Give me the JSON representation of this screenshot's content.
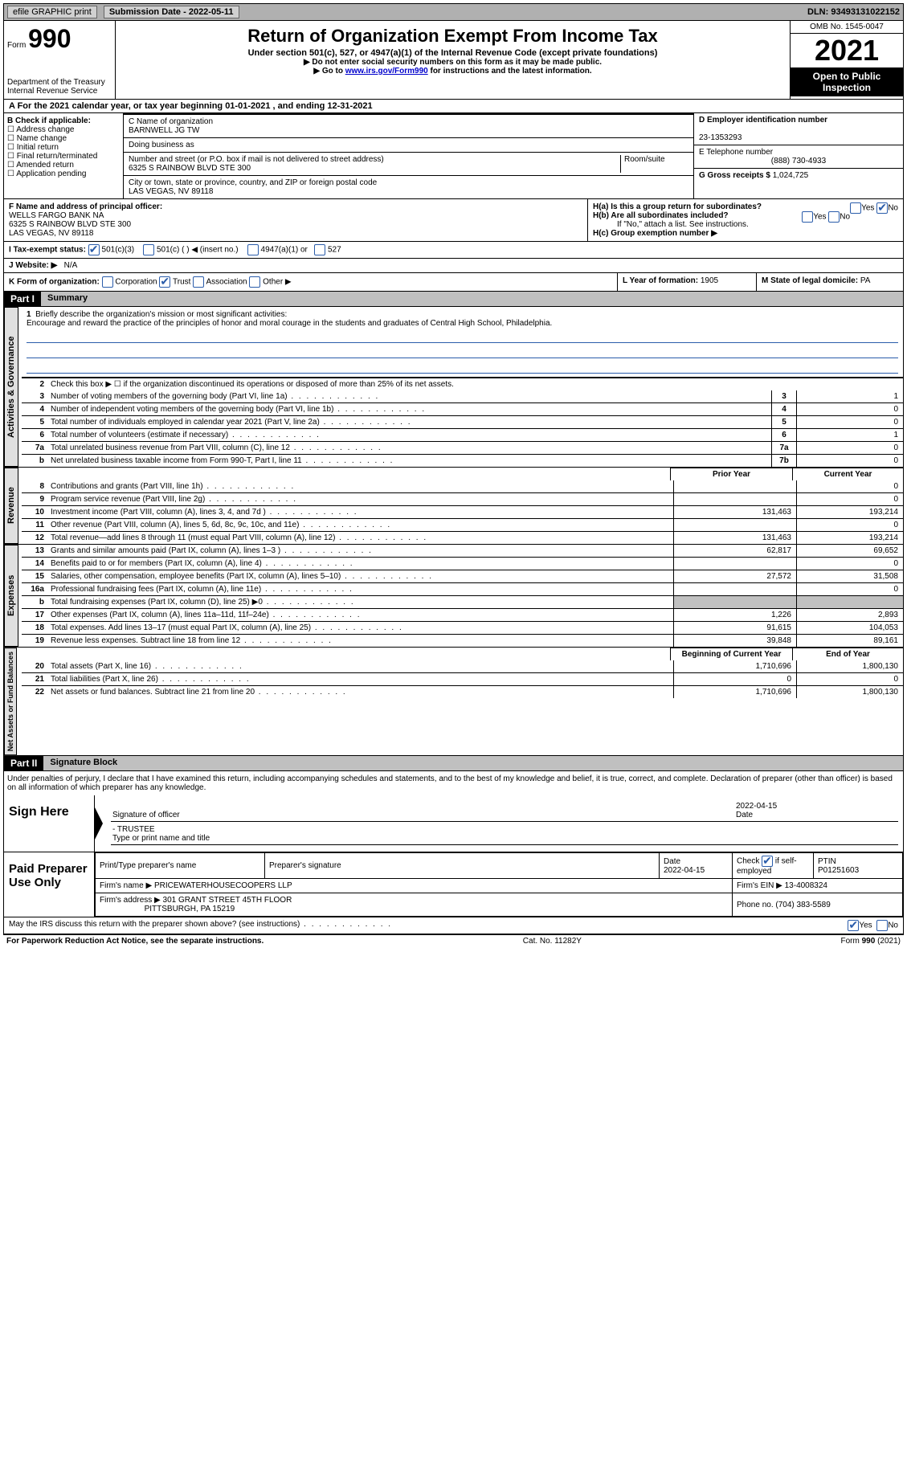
{
  "topbar": {
    "efile": "efile GRAPHIC print",
    "submission": "Submission Date - 2022-05-11",
    "dln": "DLN: 93493131022152"
  },
  "header": {
    "form_word": "Form",
    "form_num": "990",
    "title": "Return of Organization Exempt From Income Tax",
    "subtitle": "Under section 501(c), 527, or 4947(a)(1) of the Internal Revenue Code (except private foundations)",
    "note1": "▶ Do not enter social security numbers on this form as it may be made public.",
    "note2_pre": "▶ Go to ",
    "note2_link": "www.irs.gov/Form990",
    "note2_post": " for instructions and the latest information.",
    "dept": "Department of the Treasury Internal Revenue Service",
    "omb": "OMB No. 1545-0047",
    "year": "2021",
    "open": "Open to Public Inspection"
  },
  "rowA": "A For the 2021 calendar year, or tax year beginning 01-01-2021   , and ending 12-31-2021",
  "colB": {
    "title": "B Check if applicable:",
    "opts": [
      "Address change",
      "Name change",
      "Initial return",
      "Final return/terminated",
      "Amended return",
      "Application pending"
    ]
  },
  "colC": {
    "name_label": "C Name of organization",
    "name": "BARNWELL JG TW",
    "dba_label": "Doing business as",
    "addr_label": "Number and street (or P.O. box if mail is not delivered to street address)",
    "room_label": "Room/suite",
    "addr": "6325 S RAINBOW BLVD STE 300",
    "city_label": "City or town, state or province, country, and ZIP or foreign postal code",
    "city": "LAS VEGAS, NV  89118"
  },
  "colD": {
    "ein_label": "D Employer identification number",
    "ein": "23-1353293",
    "phone_label": "E Telephone number",
    "phone": "(888) 730-4933",
    "gross_label": "G Gross receipts $",
    "gross": "1,024,725"
  },
  "rowF": {
    "label": "F Name and address of principal officer:",
    "name": "WELLS FARGO BANK NA",
    "addr1": "6325 S RAINBOW BLVD STE 300",
    "addr2": "LAS VEGAS, NV  89118"
  },
  "rowH": {
    "ha": "H(a)  Is this a group return for subordinates?",
    "hb": "H(b)  Are all subordinates included?",
    "hb_note": "If \"No,\" attach a list. See instructions.",
    "hc": "H(c)  Group exemption number ▶",
    "yes": "Yes",
    "no": "No"
  },
  "rowI": {
    "label": "I    Tax-exempt status:",
    "opt1": "501(c)(3)",
    "opt2": "501(c) (  ) ◀ (insert no.)",
    "opt3": "4947(a)(1) or",
    "opt4": "527"
  },
  "rowJ": {
    "label": "J   Website: ▶",
    "val": "N/A"
  },
  "rowK": {
    "label": "K Form of organization:",
    "opts": [
      "Corporation",
      "Trust",
      "Association",
      "Other ▶"
    ]
  },
  "rowL": {
    "label": "L Year of formation:",
    "val": "1905"
  },
  "rowM": {
    "label": "M State of legal domicile:",
    "val": "PA"
  },
  "part1": {
    "header": "Part I",
    "title": "Summary",
    "line1_label": "Briefly describe the organization's mission or most significant activities:",
    "mission": "Encourage and reward the practice of the principles of honor and moral courage in the students and graduates of Central High School, Philadelphia.",
    "line2": "Check this box ▶ ☐ if the organization discontinued its operations or disposed of more than 25% of its net assets.",
    "sections": {
      "gov": "Activities & Governance",
      "rev": "Revenue",
      "exp": "Expenses",
      "net": "Net Assets or Fund Balances"
    },
    "col_prior": "Prior Year",
    "col_current": "Current Year",
    "col_begin": "Beginning of Current Year",
    "col_end": "End of Year",
    "rows_gov": [
      {
        "n": "3",
        "desc": "Number of voting members of the governing body (Part VI, line 1a)",
        "box": "3",
        "v": "1"
      },
      {
        "n": "4",
        "desc": "Number of independent voting members of the governing body (Part VI, line 1b)",
        "box": "4",
        "v": "0"
      },
      {
        "n": "5",
        "desc": "Total number of individuals employed in calendar year 2021 (Part V, line 2a)",
        "box": "5",
        "v": "0"
      },
      {
        "n": "6",
        "desc": "Total number of volunteers (estimate if necessary)",
        "box": "6",
        "v": "1"
      },
      {
        "n": "7a",
        "desc": "Total unrelated business revenue from Part VIII, column (C), line 12",
        "box": "7a",
        "v": "0"
      },
      {
        "n": "b",
        "desc": "Net unrelated business taxable income from Form 990-T, Part I, line 11",
        "box": "7b",
        "v": "0"
      }
    ],
    "rows_rev": [
      {
        "n": "8",
        "desc": "Contributions and grants (Part VIII, line 1h)",
        "p": "",
        "c": "0"
      },
      {
        "n": "9",
        "desc": "Program service revenue (Part VIII, line 2g)",
        "p": "",
        "c": "0"
      },
      {
        "n": "10",
        "desc": "Investment income (Part VIII, column (A), lines 3, 4, and 7d )",
        "p": "131,463",
        "c": "193,214"
      },
      {
        "n": "11",
        "desc": "Other revenue (Part VIII, column (A), lines 5, 6d, 8c, 9c, 10c, and 11e)",
        "p": "",
        "c": "0"
      },
      {
        "n": "12",
        "desc": "Total revenue—add lines 8 through 11 (must equal Part VIII, column (A), line 12)",
        "p": "131,463",
        "c": "193,214"
      }
    ],
    "rows_exp": [
      {
        "n": "13",
        "desc": "Grants and similar amounts paid (Part IX, column (A), lines 1–3 )",
        "p": "62,817",
        "c": "69,652"
      },
      {
        "n": "14",
        "desc": "Benefits paid to or for members (Part IX, column (A), line 4)",
        "p": "",
        "c": "0"
      },
      {
        "n": "15",
        "desc": "Salaries, other compensation, employee benefits (Part IX, column (A), lines 5–10)",
        "p": "27,572",
        "c": "31,508"
      },
      {
        "n": "16a",
        "desc": "Professional fundraising fees (Part IX, column (A), line 11e)",
        "p": "",
        "c": "0"
      },
      {
        "n": "b",
        "desc": "Total fundraising expenses (Part IX, column (D), line 25) ▶0",
        "p": "SHADE",
        "c": "SHADE"
      },
      {
        "n": "17",
        "desc": "Other expenses (Part IX, column (A), lines 11a–11d, 11f–24e)",
        "p": "1,226",
        "c": "2,893"
      },
      {
        "n": "18",
        "desc": "Total expenses. Add lines 13–17 (must equal Part IX, column (A), line 25)",
        "p": "91,615",
        "c": "104,053"
      },
      {
        "n": "19",
        "desc": "Revenue less expenses. Subtract line 18 from line 12",
        "p": "39,848",
        "c": "89,161"
      }
    ],
    "rows_net": [
      {
        "n": "20",
        "desc": "Total assets (Part X, line 16)",
        "p": "1,710,696",
        "c": "1,800,130"
      },
      {
        "n": "21",
        "desc": "Total liabilities (Part X, line 26)",
        "p": "0",
        "c": "0"
      },
      {
        "n": "22",
        "desc": "Net assets or fund balances. Subtract line 21 from line 20",
        "p": "1,710,696",
        "c": "1,800,130"
      }
    ]
  },
  "part2": {
    "header": "Part II",
    "title": "Signature Block",
    "penalties": "Under penalties of perjury, I declare that I have examined this return, including accompanying schedules and statements, and to the best of my knowledge and belief, it is true, correct, and complete. Declaration of preparer (other than officer) is based on all information of which preparer has any knowledge.",
    "sign_here": "Sign Here",
    "sig_officer": "Signature of officer",
    "date": "Date",
    "date_val": "2022-04-15",
    "trustee": "- TRUSTEE",
    "type_name": "Type or print name and title",
    "paid": "Paid Preparer Use Only",
    "prep_name": "Print/Type preparer's name",
    "prep_sig": "Preparer's signature",
    "prep_date": "2022-04-15",
    "check_if": "Check ☑ if self-employed",
    "ptin_label": "PTIN",
    "ptin": "P01251603",
    "firm_name_label": "Firm's name     ▶",
    "firm_name": "PRICEWATERHOUSECOOPERS LLP",
    "firm_ein_label": "Firm's EIN ▶",
    "firm_ein": "13-4008324",
    "firm_addr_label": "Firm's address ▶",
    "firm_addr1": "301 GRANT STREET 45TH FLOOR",
    "firm_addr2": "PITTSBURGH, PA  15219",
    "phone_label": "Phone no.",
    "phone": "(704) 383-5589",
    "discuss": "May the IRS discuss this return with the preparer shown above? (see instructions)"
  },
  "footer": {
    "left": "For Paperwork Reduction Act Notice, see the separate instructions.",
    "mid": "Cat. No. 11282Y",
    "right": "Form 990 (2021)"
  }
}
